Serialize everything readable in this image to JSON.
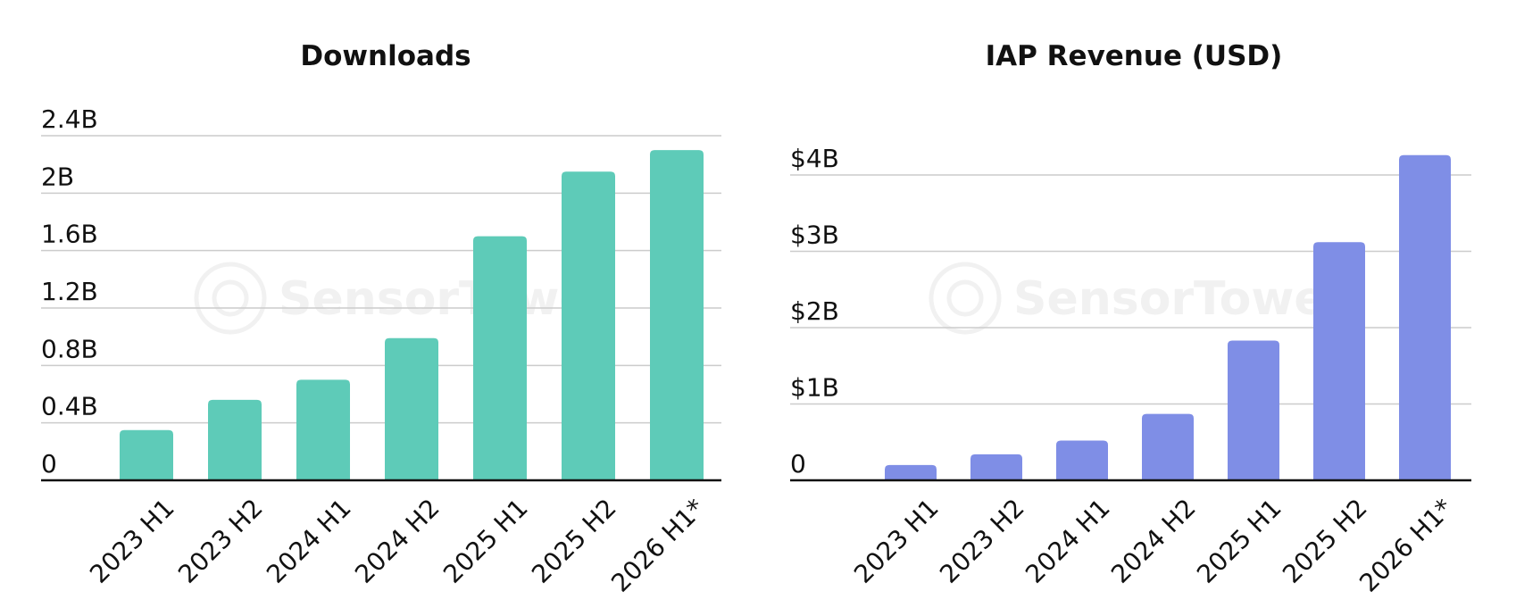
{
  "chart_data": [
    {
      "type": "bar",
      "title": "Downloads",
      "color": "#5ecbb8",
      "categories": [
        "2023 H1",
        "2023 H2",
        "2024 H1",
        "2024 H2",
        "2025 H1",
        "2025 H2",
        "2026 H1*"
      ],
      "values": [
        0.35,
        0.56,
        0.7,
        0.99,
        1.7,
        2.15,
        2.3
      ],
      "yticks": [
        0,
        0.4,
        0.8,
        1.2,
        1.6,
        2,
        2.4
      ],
      "ytick_labels": [
        "0",
        "0.4B",
        "0.8B",
        "1.2B",
        "1.6B",
        "2B",
        "2.4B"
      ],
      "ylim": [
        0,
        2.4
      ],
      "xlabel": "",
      "ylabel": "",
      "grid": true,
      "legend": "none"
    },
    {
      "type": "bar",
      "title": "IAP Revenue (USD)",
      "color": "#7f8ee6",
      "categories": [
        "2023 H1",
        "2023 H2",
        "2024 H1",
        "2024 H2",
        "2025 H1",
        "2025 H2",
        "2026 H1*"
      ],
      "values": [
        0.2,
        0.34,
        0.52,
        0.87,
        1.83,
        3.12,
        4.26
      ],
      "yticks": [
        0,
        1,
        2,
        3,
        4
      ],
      "ytick_labels": [
        "0",
        "$1B",
        "$2B",
        "$3B",
        "$4B"
      ],
      "ylim": [
        0,
        4
      ],
      "xlabel": "",
      "ylabel": "",
      "grid": true,
      "legend": "none"
    }
  ],
  "watermark": {
    "text": "SensorTower",
    "icon": "sensor-tower-logo-icon"
  }
}
